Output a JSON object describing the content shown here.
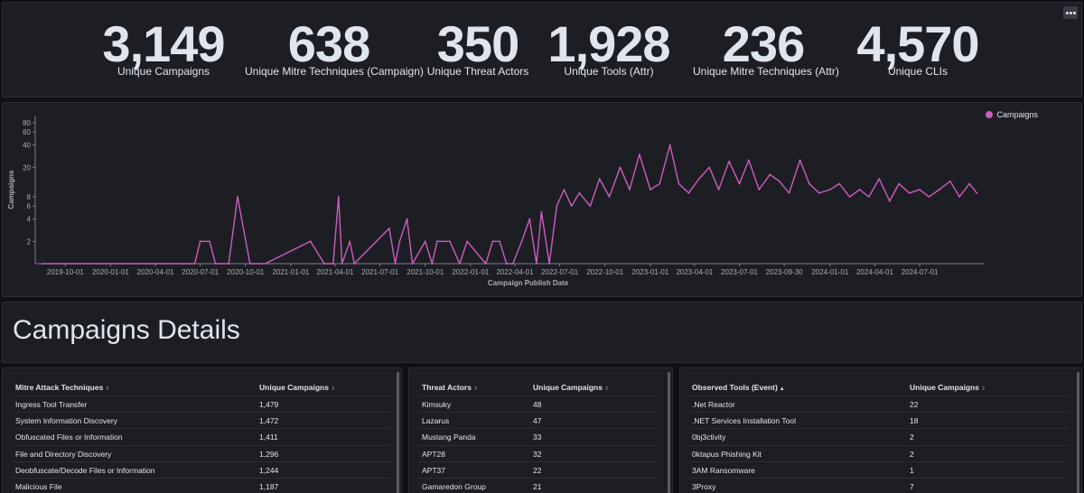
{
  "metrics": [
    {
      "value": "3,149",
      "label": "Unique Campaigns"
    },
    {
      "value": "638",
      "label": "Unique Mitre Techniques (Campaign)"
    },
    {
      "value": "350",
      "label": "Unique Threat Actors"
    },
    {
      "value": "1,928",
      "label": "Unique Tools (Attr)"
    },
    {
      "value": "236",
      "label": "Unique Mitre Techniques (Attr)"
    },
    {
      "value": "4,570",
      "label": "Unique CLIs"
    }
  ],
  "chart_data": {
    "type": "line",
    "ylabel": "Campaigns",
    "xlabel": "Campaign Publish Date",
    "y_scale": "log",
    "y_ticks": [
      "80",
      "60",
      "40",
      "20",
      "8",
      "6",
      "4",
      "2"
    ],
    "x_ticks": [
      "2019-10-01",
      "2020-01-01",
      "2020-04-01",
      "2020-07-01",
      "2020-10-01",
      "2021-01-01",
      "2021-04-01",
      "2021-07-01",
      "2021-10-01",
      "2022-01-01",
      "2022-04-01",
      "2022-07-01",
      "2022-10-01",
      "2023-01-01",
      "2023-04-01",
      "2023-07-01",
      "2023-09-30",
      "2024-01-01",
      "2024-04-01",
      "2024-07-01"
    ],
    "legend_position": "top-right",
    "series": [
      {
        "name": "Campaigns",
        "color": "#cc5dbf"
      }
    ],
    "points": [
      [
        "2019-08-15",
        1
      ],
      [
        "2020-06-20",
        1
      ],
      [
        "2020-07-01",
        2
      ],
      [
        "2020-07-20",
        2
      ],
      [
        "2020-08-01",
        1
      ],
      [
        "2020-08-28",
        1
      ],
      [
        "2020-09-15",
        8
      ],
      [
        "2020-10-10",
        1
      ],
      [
        "2020-11-10",
        1
      ],
      [
        "2021-02-10",
        2
      ],
      [
        "2021-03-10",
        1
      ],
      [
        "2021-03-28",
        1
      ],
      [
        "2021-04-08",
        8
      ],
      [
        "2021-04-15",
        1
      ],
      [
        "2021-05-01",
        2
      ],
      [
        "2021-05-10",
        1
      ],
      [
        "2021-07-20",
        3
      ],
      [
        "2021-08-01",
        1
      ],
      [
        "2021-08-10",
        2
      ],
      [
        "2021-08-25",
        4
      ],
      [
        "2021-09-05",
        1
      ],
      [
        "2021-10-01",
        2
      ],
      [
        "2021-10-15",
        1
      ],
      [
        "2021-10-25",
        2
      ],
      [
        "2021-11-20",
        2
      ],
      [
        "2021-12-10",
        1
      ],
      [
        "2021-12-25",
        2
      ],
      [
        "2022-02-01",
        1
      ],
      [
        "2022-02-15",
        2
      ],
      [
        "2022-03-01",
        2
      ],
      [
        "2022-03-15",
        1
      ],
      [
        "2022-03-28",
        1
      ],
      [
        "2022-04-15",
        2
      ],
      [
        "2022-05-01",
        4
      ],
      [
        "2022-05-15",
        1
      ],
      [
        "2022-05-25",
        5
      ],
      [
        "2022-06-10",
        1
      ],
      [
        "2022-06-25",
        6
      ],
      [
        "2022-07-10",
        10
      ],
      [
        "2022-07-25",
        6
      ],
      [
        "2022-08-10",
        9
      ],
      [
        "2022-09-01",
        6
      ],
      [
        "2022-09-20",
        14
      ],
      [
        "2022-10-10",
        8
      ],
      [
        "2022-11-01",
        20
      ],
      [
        "2022-11-20",
        10
      ],
      [
        "2022-12-10",
        30
      ],
      [
        "2023-01-01",
        10
      ],
      [
        "2023-01-20",
        12
      ],
      [
        "2023-02-10",
        40
      ],
      [
        "2023-02-28",
        12
      ],
      [
        "2023-03-20",
        9
      ],
      [
        "2023-04-10",
        14
      ],
      [
        "2023-05-01",
        20
      ],
      [
        "2023-05-20",
        10
      ],
      [
        "2023-06-10",
        24
      ],
      [
        "2023-07-01",
        12
      ],
      [
        "2023-07-20",
        25
      ],
      [
        "2023-08-10",
        10
      ],
      [
        "2023-09-01",
        16
      ],
      [
        "2023-09-20",
        13
      ],
      [
        "2023-10-10",
        9
      ],
      [
        "2023-11-01",
        25
      ],
      [
        "2023-11-20",
        12
      ],
      [
        "2023-12-10",
        9
      ],
      [
        "2024-01-01",
        10
      ],
      [
        "2024-01-20",
        12
      ],
      [
        "2024-02-10",
        8
      ],
      [
        "2024-03-01",
        10
      ],
      [
        "2024-03-20",
        8
      ],
      [
        "2024-04-10",
        14
      ],
      [
        "2024-05-01",
        7
      ],
      [
        "2024-05-20",
        12
      ],
      [
        "2024-06-10",
        9
      ],
      [
        "2024-07-01",
        10
      ],
      [
        "2024-07-20",
        8
      ],
      [
        "2024-08-10",
        10
      ],
      [
        "2024-09-01",
        13
      ],
      [
        "2024-09-20",
        8
      ],
      [
        "2024-10-10",
        12
      ],
      [
        "2024-10-25",
        9
      ]
    ]
  },
  "section_title": "Campaigns Details",
  "tables": [
    {
      "col1_header": "Mitre Attack Techniques",
      "col2_header": "Unique Campaigns",
      "rows": [
        [
          "Ingress Tool Transfer",
          "1,479"
        ],
        [
          "System Information Discovery",
          "1,472"
        ],
        [
          "Obfuscated Files or Information",
          "1,411"
        ],
        [
          "File and Directory Discovery",
          "1,296"
        ],
        [
          "Deobfuscate/Decode Files or Information",
          "1,244"
        ],
        [
          "Malicious File",
          "1,187"
        ]
      ]
    },
    {
      "col1_header": "Threat Actors",
      "col2_header": "Unique Campaigns",
      "rows": [
        [
          "Kimsuky",
          "48"
        ],
        [
          "Lazarus",
          "47"
        ],
        [
          "Mustang Panda",
          "33"
        ],
        [
          "APT28",
          "32"
        ],
        [
          "APT37",
          "22"
        ],
        [
          "Gamaredon Group",
          "21"
        ]
      ]
    },
    {
      "col1_header": "Observed Tools (Event)",
      "col2_header": "Unique Campaigns",
      "rows": [
        [
          ".Net Reactor",
          "22"
        ],
        [
          ".NET Services Installation Tool",
          "18"
        ],
        [
          "0bj3ctivity",
          "2"
        ],
        [
          "0ktapus Phishing Kit",
          "2"
        ],
        [
          "3AM Ransomware",
          "1"
        ],
        [
          "3Proxy",
          "7"
        ]
      ]
    }
  ]
}
